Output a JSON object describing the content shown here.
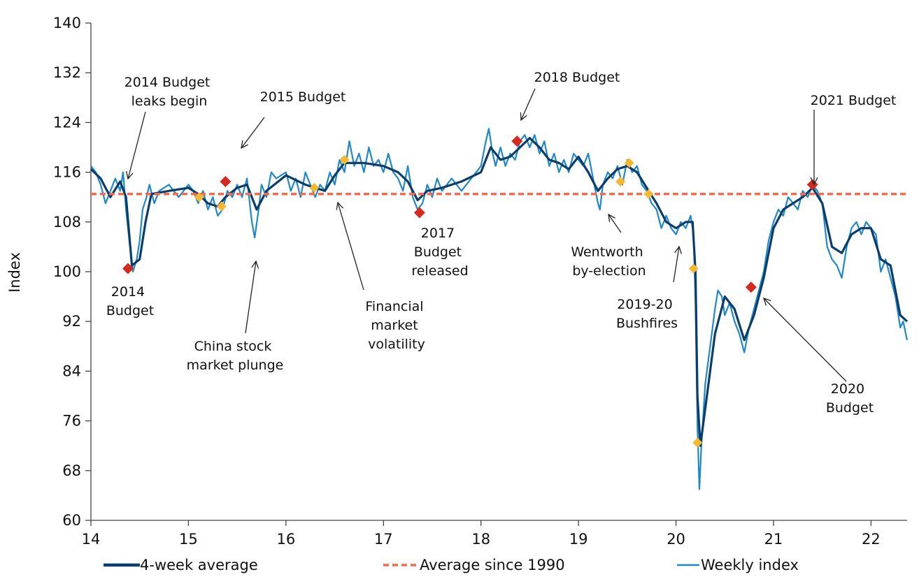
{
  "chart_data": {
    "type": "line",
    "title": "",
    "xlabel": "",
    "ylabel": "Index",
    "xlim": [
      14,
      22.37
    ],
    "ylim": [
      60,
      140
    ],
    "x_ticks": [
      "14",
      "15",
      "16",
      "17",
      "18",
      "19",
      "20",
      "21",
      "22"
    ],
    "y_ticks": [
      "60",
      "68",
      "76",
      "84",
      "92",
      "100",
      "108",
      "116",
      "124",
      "132",
      "140"
    ],
    "grid": false,
    "legend_position": "bottom",
    "colors": {
      "four_week": "#0b3d6b",
      "average": "#f26b4f",
      "weekly": "#1e88c8",
      "red_marker": "#d42a20",
      "yellow_marker": "#f5b82e"
    },
    "series": [
      {
        "name": "4-week average",
        "points": [
          [
            14.0,
            116.5
          ],
          [
            14.1,
            115
          ],
          [
            14.2,
            112
          ],
          [
            14.3,
            114.5
          ],
          [
            14.36,
            112
          ],
          [
            14.42,
            101
          ],
          [
            14.5,
            102
          ],
          [
            14.56,
            108
          ],
          [
            14.62,
            112.5
          ],
          [
            14.8,
            113
          ],
          [
            15.0,
            113.5
          ],
          [
            15.1,
            112.5
          ],
          [
            15.2,
            111
          ],
          [
            15.3,
            110.5
          ],
          [
            15.38,
            112
          ],
          [
            15.5,
            113.5
          ],
          [
            15.6,
            114
          ],
          [
            15.7,
            110
          ],
          [
            15.8,
            113
          ],
          [
            16.0,
            115.5
          ],
          [
            16.2,
            114
          ],
          [
            16.3,
            113.5
          ],
          [
            16.4,
            113
          ],
          [
            16.5,
            115.5
          ],
          [
            16.6,
            117.5
          ],
          [
            16.8,
            117.5
          ],
          [
            17.0,
            117
          ],
          [
            17.15,
            116
          ],
          [
            17.25,
            114.5
          ],
          [
            17.35,
            111.5
          ],
          [
            17.45,
            113
          ],
          [
            17.6,
            113.5
          ],
          [
            17.8,
            114.5
          ],
          [
            18.0,
            116
          ],
          [
            18.1,
            120
          ],
          [
            18.2,
            118
          ],
          [
            18.3,
            118.5
          ],
          [
            18.4,
            120
          ],
          [
            18.5,
            121.5
          ],
          [
            18.6,
            120
          ],
          [
            18.7,
            118
          ],
          [
            18.8,
            117.5
          ],
          [
            18.9,
            116.5
          ],
          [
            19.0,
            118.5
          ],
          [
            19.1,
            116
          ],
          [
            19.2,
            113
          ],
          [
            19.3,
            115
          ],
          [
            19.4,
            116.5
          ],
          [
            19.5,
            117
          ],
          [
            19.6,
            116
          ],
          [
            19.7,
            113.5
          ],
          [
            19.8,
            111
          ],
          [
            19.9,
            108
          ],
          [
            20.0,
            107
          ],
          [
            20.1,
            108
          ],
          [
            20.17,
            108
          ],
          [
            20.2,
            100
          ],
          [
            20.22,
            80
          ],
          [
            20.25,
            72
          ],
          [
            20.3,
            78
          ],
          [
            20.4,
            90
          ],
          [
            20.5,
            96
          ],
          [
            20.6,
            94
          ],
          [
            20.7,
            89
          ],
          [
            20.8,
            93
          ],
          [
            20.9,
            99
          ],
          [
            21.0,
            107
          ],
          [
            21.1,
            110
          ],
          [
            21.2,
            111
          ],
          [
            21.3,
            112
          ],
          [
            21.4,
            113.5
          ],
          [
            21.5,
            111
          ],
          [
            21.6,
            104
          ],
          [
            21.7,
            103
          ],
          [
            21.8,
            106
          ],
          [
            21.9,
            107
          ],
          [
            22.0,
            107
          ],
          [
            22.1,
            102
          ],
          [
            22.2,
            101
          ],
          [
            22.3,
            93
          ],
          [
            22.37,
            92
          ]
        ]
      },
      {
        "name": "Average since 1990",
        "points": [
          [
            14.0,
            112.5
          ],
          [
            22.37,
            112.5
          ]
        ]
      },
      {
        "name": "Weekly index",
        "points": [
          [
            14.0,
            117
          ],
          [
            14.05,
            116
          ],
          [
            14.1,
            114
          ],
          [
            14.15,
            111
          ],
          [
            14.2,
            113
          ],
          [
            14.25,
            115
          ],
          [
            14.3,
            113
          ],
          [
            14.33,
            116
          ],
          [
            14.36,
            110
          ],
          [
            14.4,
            104
          ],
          [
            14.43,
            100
          ],
          [
            14.47,
            102
          ],
          [
            14.5,
            105
          ],
          [
            14.53,
            110
          ],
          [
            14.57,
            112
          ],
          [
            14.6,
            114
          ],
          [
            14.65,
            111
          ],
          [
            14.7,
            113
          ],
          [
            14.8,
            114
          ],
          [
            14.9,
            112
          ],
          [
            15.0,
            114
          ],
          [
            15.05,
            113
          ],
          [
            15.1,
            111
          ],
          [
            15.15,
            113
          ],
          [
            15.2,
            110
          ],
          [
            15.25,
            112
          ],
          [
            15.3,
            109
          ],
          [
            15.35,
            110
          ],
          [
            15.4,
            113
          ],
          [
            15.45,
            112
          ],
          [
            15.5,
            114
          ],
          [
            15.55,
            112
          ],
          [
            15.6,
            115
          ],
          [
            15.65,
            108
          ],
          [
            15.68,
            105.5
          ],
          [
            15.72,
            110
          ],
          [
            15.75,
            114
          ],
          [
            15.8,
            112
          ],
          [
            15.85,
            116
          ],
          [
            15.9,
            115
          ],
          [
            16.0,
            116
          ],
          [
            16.05,
            113
          ],
          [
            16.1,
            115
          ],
          [
            16.15,
            112
          ],
          [
            16.2,
            116
          ],
          [
            16.25,
            114
          ],
          [
            16.3,
            112
          ],
          [
            16.35,
            114
          ],
          [
            16.4,
            113
          ],
          [
            16.45,
            116
          ],
          [
            16.5,
            114
          ],
          [
            16.55,
            118
          ],
          [
            16.6,
            116
          ],
          [
            16.65,
            121
          ],
          [
            16.7,
            117
          ],
          [
            16.75,
            119
          ],
          [
            16.8,
            116
          ],
          [
            16.85,
            120
          ],
          [
            16.9,
            117
          ],
          [
            16.95,
            118
          ],
          [
            17.0,
            116
          ],
          [
            17.05,
            119
          ],
          [
            17.1,
            116
          ],
          [
            17.15,
            115
          ],
          [
            17.2,
            113
          ],
          [
            17.25,
            117
          ],
          [
            17.3,
            112
          ],
          [
            17.35,
            110
          ],
          [
            17.4,
            111
          ],
          [
            17.45,
            114
          ],
          [
            17.5,
            112
          ],
          [
            17.55,
            115
          ],
          [
            17.6,
            113
          ],
          [
            17.65,
            114
          ],
          [
            17.7,
            115
          ],
          [
            17.8,
            113
          ],
          [
            17.9,
            115
          ],
          [
            18.0,
            117
          ],
          [
            18.05,
            121
          ],
          [
            18.08,
            123
          ],
          [
            18.12,
            119
          ],
          [
            18.15,
            117
          ],
          [
            18.2,
            120
          ],
          [
            18.25,
            117
          ],
          [
            18.3,
            119
          ],
          [
            18.35,
            118
          ],
          [
            18.4,
            121
          ],
          [
            18.45,
            122
          ],
          [
            18.5,
            120
          ],
          [
            18.55,
            122
          ],
          [
            18.6,
            119
          ],
          [
            18.65,
            121
          ],
          [
            18.7,
            117
          ],
          [
            18.75,
            119
          ],
          [
            18.8,
            116
          ],
          [
            18.85,
            118
          ],
          [
            18.9,
            116
          ],
          [
            18.95,
            119
          ],
          [
            19.0,
            118
          ],
          [
            19.05,
            117
          ],
          [
            19.1,
            119
          ],
          [
            19.15,
            115
          ],
          [
            19.2,
            111
          ],
          [
            19.22,
            110
          ],
          [
            19.25,
            114
          ],
          [
            19.3,
            116
          ],
          [
            19.35,
            115
          ],
          [
            19.4,
            117
          ],
          [
            19.45,
            114
          ],
          [
            19.5,
            118
          ],
          [
            19.55,
            116
          ],
          [
            19.6,
            117
          ],
          [
            19.65,
            114
          ],
          [
            19.7,
            113
          ],
          [
            19.75,
            111
          ],
          [
            19.8,
            110
          ],
          [
            19.85,
            107
          ],
          [
            19.9,
            109
          ],
          [
            19.95,
            107
          ],
          [
            20.0,
            106
          ],
          [
            20.05,
            108
          ],
          [
            20.1,
            107
          ],
          [
            20.15,
            109
          ],
          [
            20.18,
            106
          ],
          [
            20.2,
            95
          ],
          [
            20.22,
            75
          ],
          [
            20.24,
            65
          ],
          [
            20.26,
            72
          ],
          [
            20.3,
            82
          ],
          [
            20.35,
            88
          ],
          [
            20.4,
            94
          ],
          [
            20.43,
            97
          ],
          [
            20.47,
            96
          ],
          [
            20.5,
            93
          ],
          [
            20.55,
            95
          ],
          [
            20.6,
            92
          ],
          [
            20.65,
            90
          ],
          [
            20.7,
            87
          ],
          [
            20.75,
            91
          ],
          [
            20.8,
            94
          ],
          [
            20.85,
            97
          ],
          [
            20.9,
            100
          ],
          [
            20.95,
            105
          ],
          [
            21.0,
            108
          ],
          [
            21.05,
            110
          ],
          [
            21.1,
            109
          ],
          [
            21.15,
            112
          ],
          [
            21.2,
            111
          ],
          [
            21.25,
            110
          ],
          [
            21.3,
            113
          ],
          [
            21.35,
            112
          ],
          [
            21.4,
            114
          ],
          [
            21.45,
            113
          ],
          [
            21.5,
            111
          ],
          [
            21.55,
            104
          ],
          [
            21.6,
            102
          ],
          [
            21.65,
            101
          ],
          [
            21.7,
            99
          ],
          [
            21.75,
            104
          ],
          [
            21.8,
            107
          ],
          [
            21.85,
            108
          ],
          [
            21.9,
            106
          ],
          [
            21.95,
            108
          ],
          [
            22.0,
            107
          ],
          [
            22.05,
            106
          ],
          [
            22.1,
            100
          ],
          [
            22.15,
            102
          ],
          [
            22.2,
            99
          ],
          [
            22.25,
            96
          ],
          [
            22.3,
            91
          ],
          [
            22.33,
            92
          ],
          [
            22.37,
            89
          ]
        ]
      }
    ],
    "red_markers": [
      [
        14.38,
        100.5
      ],
      [
        15.38,
        114.5
      ],
      [
        17.37,
        109.5
      ],
      [
        18.37,
        121
      ],
      [
        20.77,
        97.5
      ],
      [
        21.4,
        114
      ]
    ],
    "yellow_markers": [
      [
        15.11,
        112
      ],
      [
        15.34,
        110.5
      ],
      [
        16.29,
        113.5
      ],
      [
        16.6,
        118
      ],
      [
        19.43,
        114.5
      ],
      [
        19.52,
        117.5
      ],
      [
        19.72,
        112.5
      ],
      [
        20.18,
        100.5
      ],
      [
        20.22,
        72.5
      ]
    ],
    "annotations": [
      {
        "id": "budget2014leaks",
        "lines": [
          "2014 Budget",
          "leaks begin"
        ]
      },
      {
        "id": "budget2014",
        "lines": [
          "2014",
          "Budget"
        ]
      },
      {
        "id": "budget2015",
        "lines": [
          "2015 Budget"
        ]
      },
      {
        "id": "china",
        "lines": [
          "China stock",
          "market plunge"
        ]
      },
      {
        "id": "finvol",
        "lines": [
          "Financial",
          "market",
          "volatility"
        ]
      },
      {
        "id": "budget2017",
        "lines": [
          "2017",
          "Budget",
          "released"
        ]
      },
      {
        "id": "budget2018",
        "lines": [
          "2018 Budget"
        ]
      },
      {
        "id": "wentworth",
        "lines": [
          "Wentworth",
          "by-election"
        ]
      },
      {
        "id": "bushfires",
        "lines": [
          "2019-20",
          "Bushfires"
        ]
      },
      {
        "id": "budget2020",
        "lines": [
          "2020",
          "Budget"
        ]
      },
      {
        "id": "budget2021",
        "lines": [
          "2021 Budget"
        ]
      }
    ]
  }
}
